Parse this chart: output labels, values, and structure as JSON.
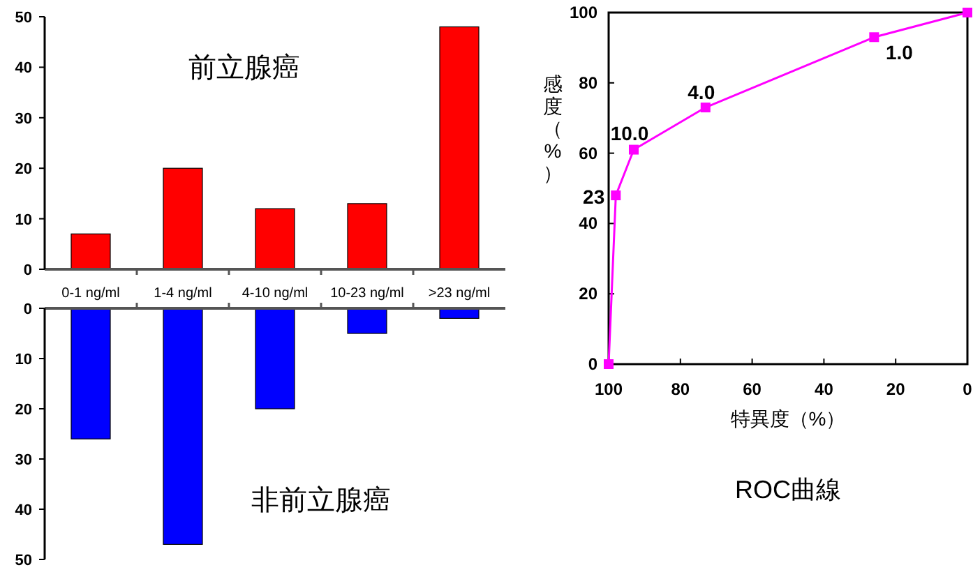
{
  "chart_data": [
    {
      "type": "bar",
      "categories": [
        "0-1 ng/ml",
        "1-4 ng/ml",
        "4-10 ng/ml",
        "10-23 ng/ml",
        ">23 ng/ml"
      ],
      "values": [
        7,
        20,
        12,
        13,
        48
      ],
      "color": "#ff0000",
      "ylim": [
        0,
        50
      ],
      "yticks": [
        0,
        10,
        20,
        30,
        40,
        50
      ],
      "annotations": [
        "前立腺癌"
      ]
    },
    {
      "type": "bar",
      "categories": [
        null,
        null,
        null,
        null,
        null
      ],
      "values": [
        26,
        47,
        20,
        5,
        2
      ],
      "color": "#0000ff",
      "ylim": [
        50,
        0
      ],
      "yticks": [
        0,
        10,
        20,
        30,
        40,
        50
      ],
      "annotations": [
        "非前立腺癌"
      ]
    },
    {
      "type": "line",
      "title": "ROC曲線",
      "xlabel": "特異度（%）",
      "ylabel": "感度（%）",
      "x": [
        100,
        98,
        93,
        73,
        26,
        0
      ],
      "values": [
        0,
        48,
        61,
        73,
        93,
        100
      ],
      "color": "#ff00ff",
      "marker": "square",
      "xlim": [
        100,
        0
      ],
      "ylim": [
        0,
        100
      ],
      "xticks": [
        100,
        80,
        60,
        40,
        20,
        0
      ],
      "yticks": [
        0,
        20,
        40,
        60,
        80,
        100
      ],
      "annotations": [
        {
          "text": "23",
          "x": 98,
          "y": 48
        },
        {
          "text": "10.0",
          "x": 93,
          "y": 61
        },
        {
          "text": "4.0",
          "x": 73,
          "y": 73
        },
        {
          "text": "1.0",
          "x": 26,
          "y": 93
        }
      ]
    }
  ]
}
